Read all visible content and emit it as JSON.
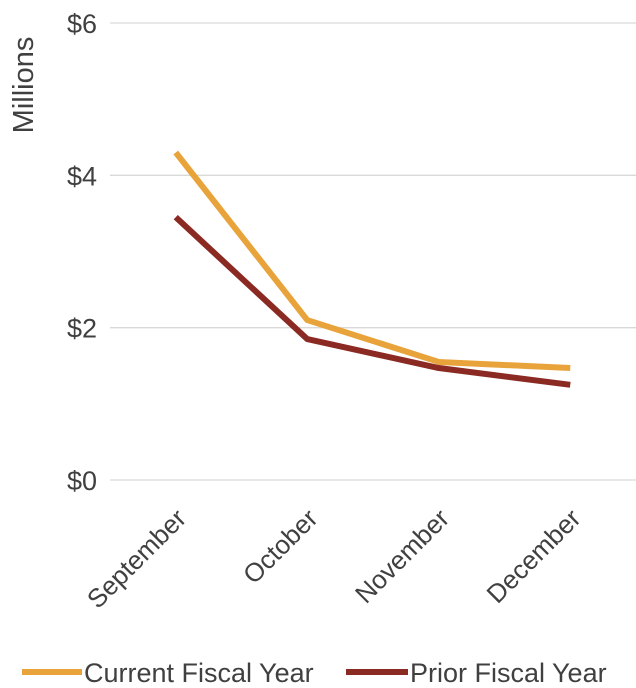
{
  "chart_data": {
    "type": "line",
    "categories": [
      "September",
      "October",
      "November",
      "December"
    ],
    "series": [
      {
        "name": "Current Fiscal Year",
        "color": "#E8A43A",
        "values": [
          4.3,
          2.1,
          1.55,
          1.47
        ]
      },
      {
        "name": "Prior Fiscal Year",
        "color": "#8B2A22",
        "values": [
          3.45,
          1.85,
          1.47,
          1.25
        ]
      }
    ],
    "ylabel": "Millions",
    "ylim": [
      0,
      6
    ],
    "yticks": [
      {
        "value": 0,
        "label": "$0"
      },
      {
        "value": 2,
        "label": "$2"
      },
      {
        "value": 4,
        "label": "$4"
      },
      {
        "value": 6,
        "label": "$6"
      }
    ],
    "grid": true,
    "legend": "bottom"
  }
}
